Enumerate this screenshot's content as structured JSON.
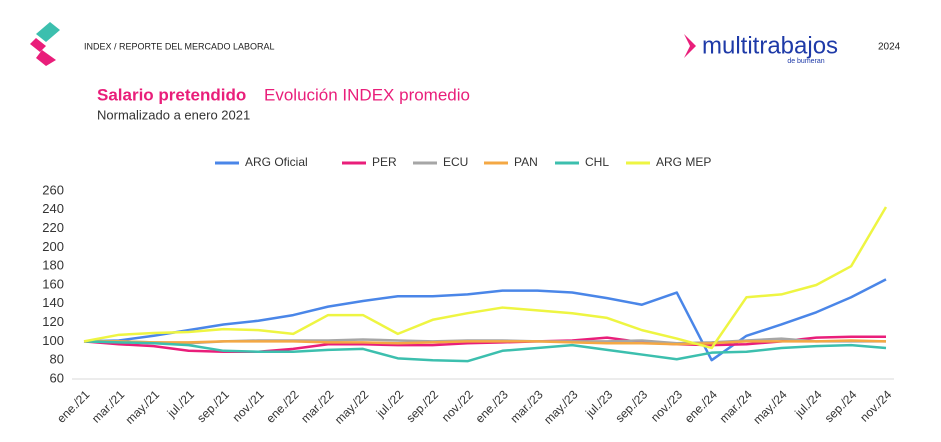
{
  "header": {
    "report": "INDEX / REPORTE DEL MERCADO LABORAL",
    "brand": "multitrabajos",
    "brand_sub": "de bumeran",
    "year": "2024"
  },
  "chart_data": {
    "type": "line",
    "title": "Salario pretendido",
    "title_rest": "Evolución INDEX promedio",
    "subtitle": "Normalizado a enero 2021",
    "categories": [
      "ene./21",
      "mar./21",
      "may./21",
      "jul./21",
      "sep./21",
      "nov./21",
      "ene./22",
      "mar./22",
      "may./22",
      "jul./22",
      "sep./22",
      "nov./22",
      "ene./23",
      "mar./23",
      "may./23",
      "jul./23",
      "sep./23",
      "nov./23",
      "ene./24",
      "mar./24",
      "may./24",
      "jul./24",
      "sep./24",
      "nov./24"
    ],
    "series": [
      {
        "name": "ARG Oficial",
        "color": "#4a86e8",
        "values": [
          100,
          101,
          106,
          112,
          118,
          122,
          128,
          137,
          143,
          148,
          148,
          150,
          154,
          154,
          152,
          146,
          139,
          152,
          80,
          106,
          118,
          131,
          147,
          166
        ]
      },
      {
        "name": "PER",
        "color": "#e91e7a",
        "values": [
          100,
          97,
          95,
          90,
          89,
          89,
          92,
          97,
          97,
          96,
          96,
          98,
          99,
          100,
          101,
          104,
          99,
          97,
          96,
          97,
          100,
          104,
          105,
          105
        ]
      },
      {
        "name": "ECU",
        "color": "#a6a6a6",
        "values": [
          100,
          100,
          99,
          98,
          100,
          101,
          101,
          101,
          102,
          101,
          100,
          101,
          101,
          100,
          100,
          100,
          101,
          98,
          99,
          101,
          103,
          100,
          100,
          100
        ]
      },
      {
        "name": "PAN",
        "color": "#f4a844",
        "values": [
          100,
          100,
          99,
          99,
          100,
          100,
          100,
          99,
          99,
          98,
          99,
          100,
          100,
          100,
          99,
          98,
          98,
          97,
          98,
          100,
          100,
          100,
          101,
          100
        ]
      },
      {
        "name": "CHL",
        "color": "#3cbfae",
        "values": [
          100,
          99,
          98,
          96,
          90,
          89,
          89,
          91,
          92,
          82,
          80,
          79,
          90,
          93,
          96,
          91,
          86,
          81,
          88,
          89,
          93,
          95,
          96,
          93
        ]
      },
      {
        "name": "ARG MEP",
        "color": "#eef542",
        "values": [
          100,
          107,
          109,
          110,
          113,
          112,
          108,
          128,
          128,
          108,
          123,
          130,
          136,
          133,
          130,
          125,
          112,
          103,
          93,
          147,
          150,
          160,
          180,
          243
        ]
      }
    ],
    "ylim": [
      60,
      260
    ],
    "yticks": [
      60,
      80,
      100,
      120,
      140,
      160,
      180,
      200,
      220,
      240,
      260
    ],
    "grid": false,
    "legend": "top"
  }
}
